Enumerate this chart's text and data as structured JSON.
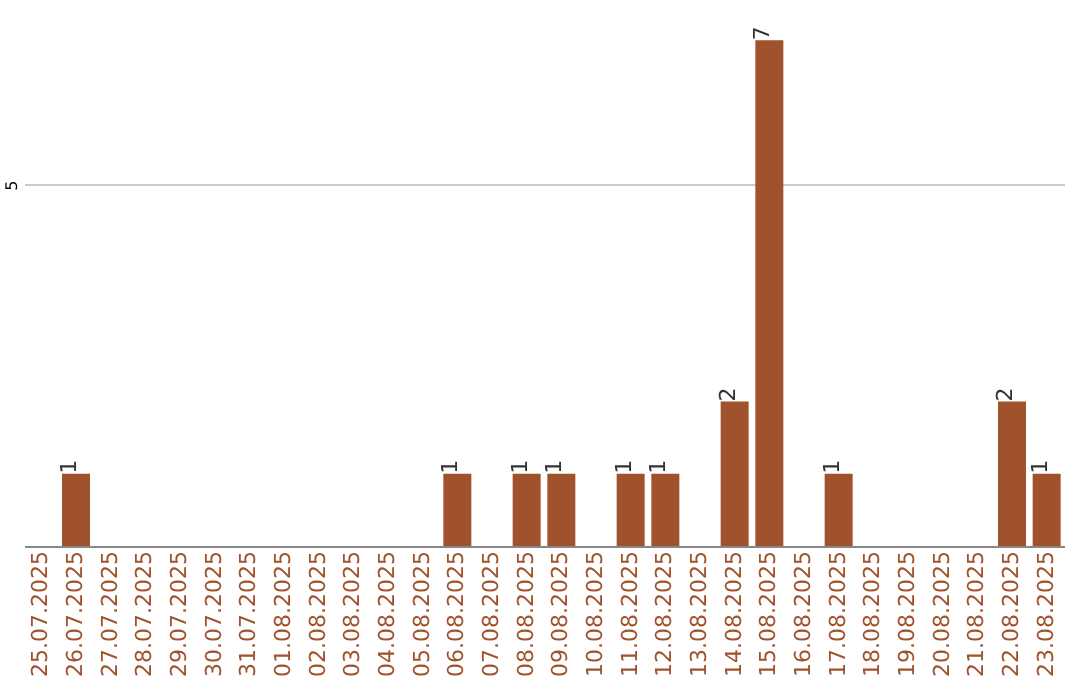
{
  "chart_data": {
    "type": "bar",
    "categories": [
      "25.07.2025",
      "26.07.2025",
      "27.07.2025",
      "28.07.2025",
      "29.07.2025",
      "30.07.2025",
      "31.07.2025",
      "01.08.2025",
      "02.08.2025",
      "03.08.2025",
      "04.08.2025",
      "05.08.2025",
      "06.08.2025",
      "07.08.2025",
      "08.08.2025",
      "09.08.2025",
      "10.08.2025",
      "11.08.2025",
      "12.08.2025",
      "13.08.2025",
      "14.08.2025",
      "15.08.2025",
      "16.08.2025",
      "17.08.2025",
      "18.08.2025",
      "19.08.2025",
      "20.08.2025",
      "21.08.2025",
      "22.08.2025",
      "23.08.2025"
    ],
    "values": [
      0,
      1,
      0,
      0,
      0,
      0,
      0,
      0,
      0,
      0,
      0,
      0,
      1,
      0,
      1,
      1,
      0,
      1,
      1,
      0,
      2,
      7,
      0,
      1,
      0,
      0,
      0,
      0,
      2,
      1
    ],
    "value_labels": [
      null,
      "1",
      null,
      null,
      null,
      null,
      null,
      null,
      null,
      null,
      null,
      null,
      "1",
      null,
      "1",
      "1",
      null,
      "1",
      "1",
      null,
      "2",
      "7",
      null,
      "1",
      null,
      null,
      null,
      null,
      "2",
      "1"
    ],
    "color": "#a0522d",
    "ylim": [
      0,
      7.5
    ],
    "yticks": [
      {
        "value": 0,
        "label": null
      },
      5
    ],
    "grid": "y"
  }
}
